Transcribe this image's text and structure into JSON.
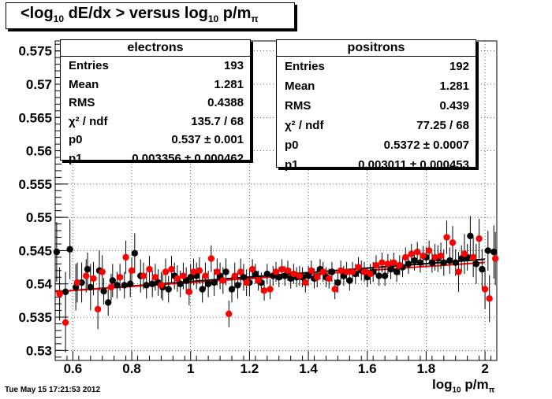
{
  "title": {
    "pre": "<log",
    "sub1": "10",
    "mid": " dE/dx > versus log",
    "sub2": "10",
    "post": " p/m",
    "sub3": "π"
  },
  "timestamp": "Tue May 15 17:21:53 2012",
  "xlabel": {
    "pre": "log",
    "sub1": "10",
    "post": " p/m",
    "sub2": "π"
  },
  "stats": {
    "electrons": {
      "title": "electrons",
      "rows": [
        {
          "label": "Entries",
          "value": "193"
        },
        {
          "label": "Mean",
          "value": "1.281"
        },
        {
          "label": "RMS",
          "value": "0.4388"
        },
        {
          "label": "χ² / ndf",
          "value": "135.7 / 68"
        },
        {
          "label": "p0",
          "value": "0.537 ± 0.001"
        },
        {
          "label": "p1",
          "value": "0.003356 ± 0.000462"
        }
      ]
    },
    "positrons": {
      "title": "positrons",
      "rows": [
        {
          "label": "Entries",
          "value": "192"
        },
        {
          "label": "Mean",
          "value": "1.281"
        },
        {
          "label": "RMS",
          "value": "0.439"
        },
        {
          "label": "χ² / ndf",
          "value": "77.25 / 68"
        },
        {
          "label": "p0",
          "value": "0.5372 ± 0.0007"
        },
        {
          "label": "p1",
          "value": "0.003011 ± 0.000453"
        }
      ]
    }
  },
  "chart_data": {
    "type": "scatter",
    "xlim": [
      0.54,
      2.04
    ],
    "ylim": [
      0.5285,
      0.5765
    ],
    "xticks": [
      0.6,
      0.8,
      1,
      1.2,
      1.4,
      1.6,
      1.8,
      2
    ],
    "xtick_labels": [
      "0.6",
      "0.8",
      "1",
      "1.2",
      "1.4",
      "1.6",
      "1.8",
      "2"
    ],
    "yticks": [
      0.53,
      0.535,
      0.54,
      0.545,
      0.55,
      0.555,
      0.56,
      0.565,
      0.57,
      0.575
    ],
    "ytick_labels": [
      "0.53",
      "0.535",
      "0.54",
      "0.545",
      "0.55",
      "0.555",
      "0.56",
      "0.565",
      "0.57",
      "0.575"
    ],
    "grid": true,
    "series": [
      {
        "name": "electrons",
        "color": "#000000",
        "fit": {
          "p0": 0.537,
          "p1": 0.003356
        },
        "points": [
          [
            0.545,
            0.5448,
            0.0045
          ],
          [
            0.575,
            0.5388,
            0.003
          ],
          [
            0.59,
            0.5452,
            0.0045
          ],
          [
            0.61,
            0.5395,
            0.0035
          ],
          [
            0.63,
            0.5402,
            0.003
          ],
          [
            0.65,
            0.5422,
            0.0025
          ],
          [
            0.66,
            0.5395,
            0.0035
          ],
          [
            0.69,
            0.542,
            0.003
          ],
          [
            0.705,
            0.5389,
            0.002
          ],
          [
            0.72,
            0.5372,
            0.002
          ],
          [
            0.735,
            0.5405,
            0.0025
          ],
          [
            0.75,
            0.5398,
            0.002
          ],
          [
            0.775,
            0.5398,
            0.002
          ],
          [
            0.795,
            0.54,
            0.002
          ],
          [
            0.81,
            0.5446,
            0.003
          ],
          [
            0.83,
            0.5412,
            0.0025
          ],
          [
            0.85,
            0.5398,
            0.002
          ],
          [
            0.87,
            0.54,
            0.002
          ],
          [
            0.89,
            0.5402,
            0.002
          ],
          [
            0.905,
            0.5395,
            0.002
          ],
          [
            0.925,
            0.5392,
            0.002
          ],
          [
            0.945,
            0.5412,
            0.002
          ],
          [
            0.965,
            0.54,
            0.002
          ],
          [
            0.985,
            0.5405,
            0.002
          ],
          [
            1.0,
            0.541,
            0.002
          ],
          [
            1.02,
            0.5412,
            0.002
          ],
          [
            1.04,
            0.5392,
            0.002
          ],
          [
            1.06,
            0.54,
            0.002
          ],
          [
            1.08,
            0.5402,
            0.002
          ],
          [
            1.1,
            0.5412,
            0.002
          ],
          [
            1.12,
            0.5418,
            0.002
          ],
          [
            1.14,
            0.5392,
            0.002
          ],
          [
            1.16,
            0.5398,
            0.002
          ],
          [
            1.18,
            0.541,
            0.002
          ],
          [
            1.2,
            0.5402,
            0.002
          ],
          [
            1.22,
            0.5415,
            0.0015
          ],
          [
            1.24,
            0.5402,
            0.0015
          ],
          [
            1.26,
            0.5415,
            0.0015
          ],
          [
            1.28,
            0.5412,
            0.0015
          ],
          [
            1.3,
            0.541,
            0.0015
          ],
          [
            1.32,
            0.5412,
            0.0015
          ],
          [
            1.34,
            0.5408,
            0.0015
          ],
          [
            1.36,
            0.541,
            0.0015
          ],
          [
            1.38,
            0.541,
            0.0015
          ],
          [
            1.4,
            0.5412,
            0.0015
          ],
          [
            1.42,
            0.5408,
            0.0015
          ],
          [
            1.44,
            0.5422,
            0.0015
          ],
          [
            1.46,
            0.541,
            0.0015
          ],
          [
            1.48,
            0.5418,
            0.0015
          ],
          [
            1.5,
            0.5402,
            0.0015
          ],
          [
            1.52,
            0.5412,
            0.0015
          ],
          [
            1.54,
            0.5405,
            0.0015
          ],
          [
            1.56,
            0.5415,
            0.0015
          ],
          [
            1.58,
            0.542,
            0.0015
          ],
          [
            1.6,
            0.541,
            0.0015
          ],
          [
            1.62,
            0.5418,
            0.0015
          ],
          [
            1.64,
            0.5412,
            0.0015
          ],
          [
            1.66,
            0.5412,
            0.0015
          ],
          [
            1.68,
            0.5422,
            0.0015
          ],
          [
            1.7,
            0.5418,
            0.0015
          ],
          [
            1.72,
            0.5425,
            0.0015
          ],
          [
            1.74,
            0.543,
            0.0015
          ],
          [
            1.76,
            0.5435,
            0.0015
          ],
          [
            1.78,
            0.5432,
            0.0015
          ],
          [
            1.8,
            0.544,
            0.0015
          ],
          [
            1.82,
            0.5432,
            0.0015
          ],
          [
            1.84,
            0.5438,
            0.002
          ],
          [
            1.86,
            0.5432,
            0.002
          ],
          [
            1.88,
            0.5435,
            0.002
          ],
          [
            1.9,
            0.5432,
            0.002
          ],
          [
            1.92,
            0.5438,
            0.002
          ],
          [
            1.94,
            0.544,
            0.002
          ],
          [
            1.95,
            0.5472,
            0.003
          ],
          [
            1.97,
            0.543,
            0.003
          ],
          [
            1.99,
            0.5422,
            0.003
          ],
          [
            2.01,
            0.545,
            0.003
          ],
          [
            2.03,
            0.5448,
            0.004
          ]
        ]
      },
      {
        "name": "positrons",
        "color": "#ff0000",
        "fit": {
          "p0": 0.5372,
          "p1": 0.003011
        },
        "points": [
          [
            0.555,
            0.5385,
            0.004
          ],
          [
            0.575,
            0.5342,
            0.0045
          ],
          [
            0.615,
            0.5402,
            0.003
          ],
          [
            0.645,
            0.5412,
            0.0025
          ],
          [
            0.67,
            0.5408,
            0.0025
          ],
          [
            0.685,
            0.5362,
            0.003
          ],
          [
            0.7,
            0.5418,
            0.0025
          ],
          [
            0.73,
            0.5395,
            0.002
          ],
          [
            0.76,
            0.541,
            0.002
          ],
          [
            0.78,
            0.544,
            0.0025
          ],
          [
            0.8,
            0.542,
            0.002
          ],
          [
            0.84,
            0.5412,
            0.002
          ],
          [
            0.86,
            0.5422,
            0.002
          ],
          [
            0.88,
            0.541,
            0.002
          ],
          [
            0.9,
            0.5398,
            0.002
          ],
          [
            0.915,
            0.5418,
            0.002
          ],
          [
            0.935,
            0.5422,
            0.002
          ],
          [
            0.955,
            0.5408,
            0.002
          ],
          [
            0.975,
            0.5412,
            0.002
          ],
          [
            0.995,
            0.5388,
            0.002
          ],
          [
            1.01,
            0.5418,
            0.002
          ],
          [
            1.03,
            0.542,
            0.002
          ],
          [
            1.05,
            0.5412,
            0.002
          ],
          [
            1.07,
            0.5438,
            0.002
          ],
          [
            1.09,
            0.5418,
            0.002
          ],
          [
            1.11,
            0.5405,
            0.002
          ],
          [
            1.13,
            0.5355,
            0.002
          ],
          [
            1.15,
            0.5412,
            0.002
          ],
          [
            1.17,
            0.5418,
            0.002
          ],
          [
            1.19,
            0.5402,
            0.002
          ],
          [
            1.21,
            0.5422,
            0.0015
          ],
          [
            1.23,
            0.5405,
            0.0015
          ],
          [
            1.25,
            0.539,
            0.0015
          ],
          [
            1.27,
            0.5392,
            0.0015
          ],
          [
            1.29,
            0.5418,
            0.0015
          ],
          [
            1.31,
            0.5422,
            0.0015
          ],
          [
            1.33,
            0.542,
            0.0015
          ],
          [
            1.35,
            0.5415,
            0.0015
          ],
          [
            1.37,
            0.5412,
            0.0015
          ],
          [
            1.39,
            0.5402,
            0.0015
          ],
          [
            1.41,
            0.542,
            0.0015
          ],
          [
            1.43,
            0.541,
            0.0015
          ],
          [
            1.45,
            0.5418,
            0.0015
          ],
          [
            1.47,
            0.5408,
            0.0015
          ],
          [
            1.49,
            0.5392,
            0.0015
          ],
          [
            1.51,
            0.542,
            0.0015
          ],
          [
            1.53,
            0.5418,
            0.0015
          ],
          [
            1.55,
            0.5418,
            0.0015
          ],
          [
            1.57,
            0.5425,
            0.0015
          ],
          [
            1.59,
            0.5418,
            0.0015
          ],
          [
            1.61,
            0.5415,
            0.0015
          ],
          [
            1.63,
            0.5428,
            0.0015
          ],
          [
            1.65,
            0.5432,
            0.0015
          ],
          [
            1.67,
            0.543,
            0.0015
          ],
          [
            1.69,
            0.5432,
            0.0015
          ],
          [
            1.71,
            0.5428,
            0.0015
          ],
          [
            1.73,
            0.544,
            0.0015
          ],
          [
            1.75,
            0.5445,
            0.0015
          ],
          [
            1.77,
            0.5448,
            0.0015
          ],
          [
            1.79,
            0.5442,
            0.0015
          ],
          [
            1.81,
            0.545,
            0.0015
          ],
          [
            1.83,
            0.544,
            0.002
          ],
          [
            1.85,
            0.5442,
            0.002
          ],
          [
            1.87,
            0.547,
            0.0025
          ],
          [
            1.89,
            0.5462,
            0.0025
          ],
          [
            1.91,
            0.5418,
            0.003
          ],
          [
            1.93,
            0.5445,
            0.003
          ],
          [
            1.96,
            0.544,
            0.003
          ],
          [
            1.98,
            0.5468,
            0.003
          ],
          [
            2.0,
            0.5392,
            0.003
          ],
          [
            2.015,
            0.5378,
            0.0035
          ],
          [
            2.035,
            0.5438,
            0.004
          ]
        ]
      }
    ]
  }
}
